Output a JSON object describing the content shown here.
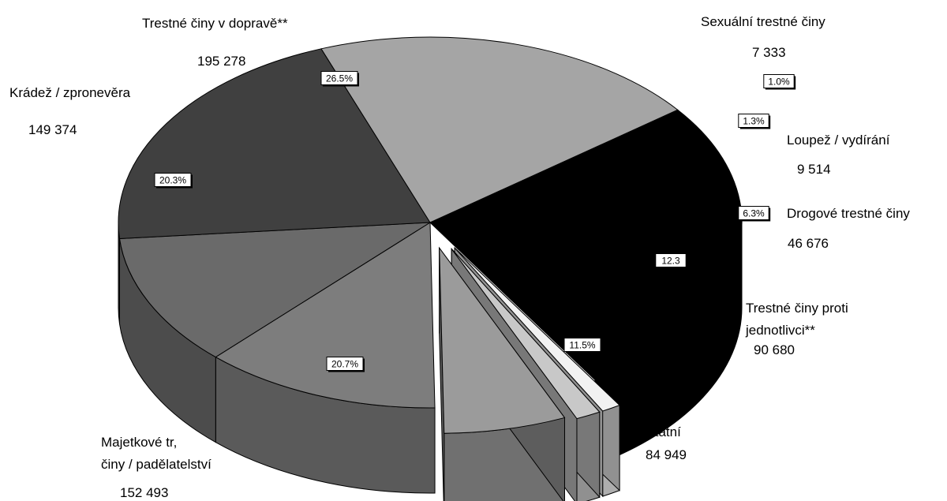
{
  "chart_data": {
    "type": "pie",
    "three_d": true,
    "legend": "none",
    "slices": [
      {
        "label_lines": [
          "Trestné činy v dopravě**"
        ],
        "value_text": "195 278",
        "value": 195278,
        "pct_label": "26.5%",
        "color": "#000000",
        "exploded": false
      },
      {
        "label_lines": [
          "Sexuální trestné činy"
        ],
        "value_text": "7 333",
        "value": 7333,
        "pct_label": "1.0%",
        "color": "#f2f2f2",
        "exploded": true
      },
      {
        "label_lines": [
          "Loupež / vydírání"
        ],
        "value_text": "9 514",
        "value": 9514,
        "pct_label": "1.3%",
        "color": "#c8c8c8",
        "exploded": true
      },
      {
        "label_lines": [
          "Drogové trestné činy"
        ],
        "value_text": "46 676",
        "value": 46676,
        "pct_label": "6.3%",
        "color": "#9b9b9b",
        "exploded": true
      },
      {
        "label_lines": [
          "Trestné činy proti",
          "jednotlivci**"
        ],
        "value_text": "90 680",
        "value": 90680,
        "pct_label": "12.3",
        "color": "#7d7d7d",
        "exploded": false
      },
      {
        "label_lines": [
          "Ostatní"
        ],
        "value_text": "84 949",
        "value": 84949,
        "pct_label": "11.5%",
        "color": "#6a6a6a",
        "exploded": false
      },
      {
        "label_lines": [
          "Majetkové tr,",
          "činy / padělatelství"
        ],
        "value_text": "152 493",
        "value": 152493,
        "pct_label": "20.7%",
        "color": "#404040",
        "exploded": false
      },
      {
        "label_lines": [
          "Krádež / zpronevěra"
        ],
        "value_text": "149 374",
        "value": 149374,
        "pct_label": "20.3%",
        "color": "#a5a5a5",
        "exploded": false
      }
    ]
  }
}
